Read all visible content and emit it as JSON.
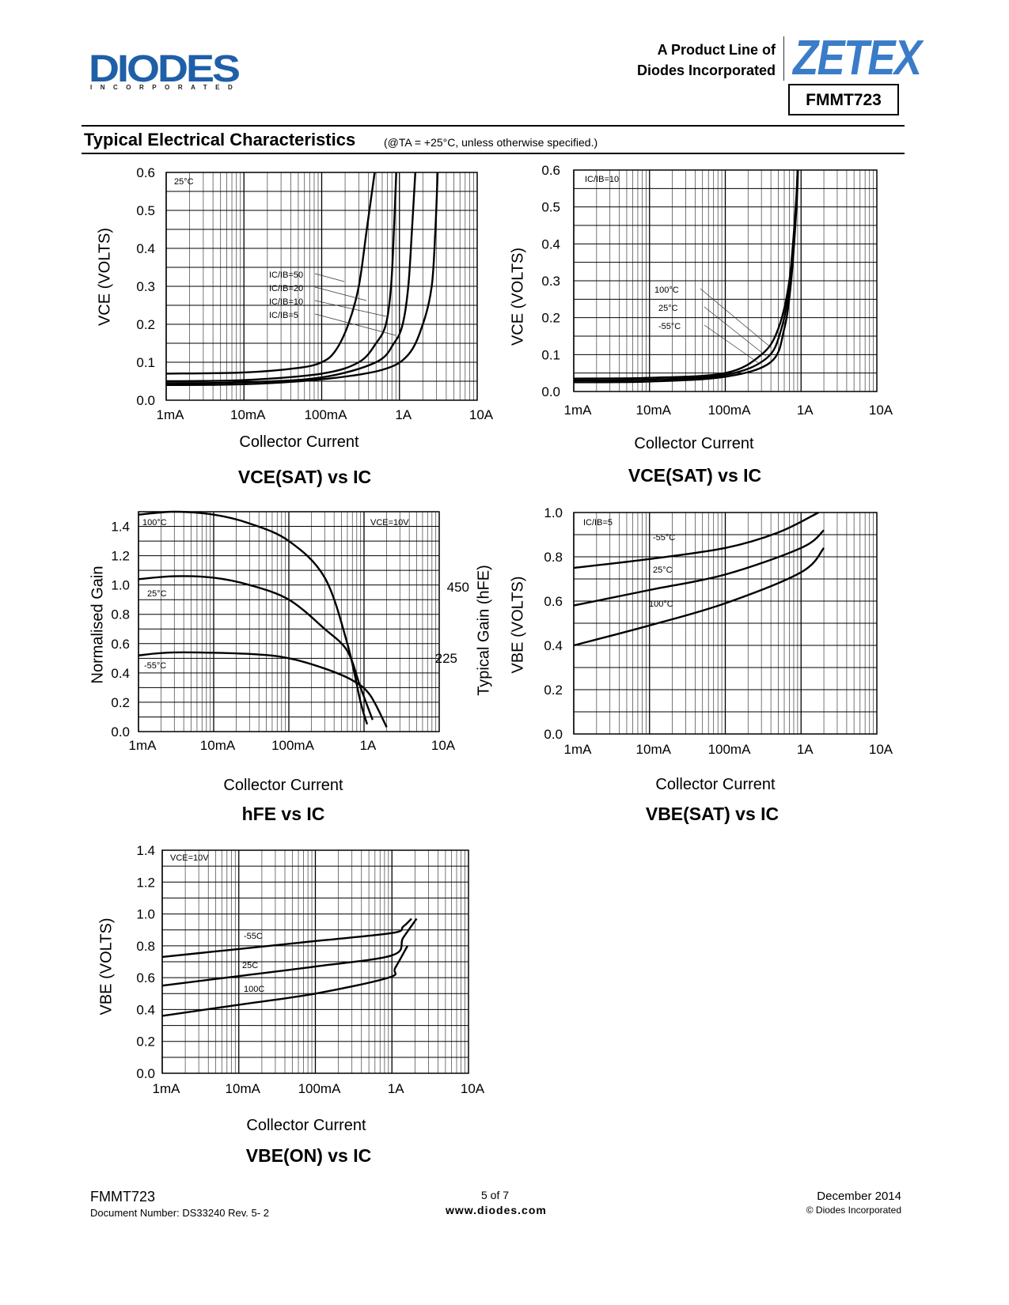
{
  "header": {
    "logo_text": "DIODES",
    "logo_sub": "INCORPORATED",
    "product_line_1": "A Product Line of",
    "product_line_2": "Diodes Incorporated",
    "zetex_logo": "ZETEX",
    "part_number": "FMMT723",
    "brand_color": "#1f5fa8"
  },
  "section": {
    "title": "Typical Electrical Characteristics",
    "note": "(@TA = +25°C, unless otherwise specified.)"
  },
  "chart_data": [
    {
      "type": "line",
      "title": "VCE(SAT) vs IC",
      "xlabel": "Collector Current",
      "ylabel": "VCE (VOLTS)",
      "xscale": "log",
      "xlim": [
        0.001,
        10
      ],
      "ylim": [
        0,
        0.6
      ],
      "xticks": [
        "1mA",
        "10mA",
        "100mA",
        "1A",
        "10A"
      ],
      "yticks": [
        "0.0",
        "0.1",
        "0.2",
        "0.3",
        "0.4",
        "0.5",
        "0.6"
      ],
      "ystep": 0.05,
      "grid": true,
      "condition": "25°C",
      "series": [
        {
          "name": "IC/IB=50",
          "points": [
            [
              0.001,
              0.07
            ],
            [
              0.01,
              0.073
            ],
            [
              0.05,
              0.085
            ],
            [
              0.1,
              0.1
            ],
            [
              0.15,
              0.13
            ],
            [
              0.22,
              0.2
            ],
            [
              0.3,
              0.3
            ],
            [
              0.38,
              0.45
            ],
            [
              0.48,
              0.6
            ]
          ]
        },
        {
          "name": "IC/IB=20",
          "points": [
            [
              0.001,
              0.05
            ],
            [
              0.01,
              0.053
            ],
            [
              0.1,
              0.07
            ],
            [
              0.3,
              0.1
            ],
            [
              0.5,
              0.15
            ],
            [
              0.67,
              0.2
            ],
            [
              0.78,
              0.3
            ],
            [
              0.85,
              0.45
            ],
            [
              0.91,
              0.6
            ]
          ]
        },
        {
          "name": "IC/IB=10",
          "points": [
            [
              0.001,
              0.045
            ],
            [
              0.01,
              0.047
            ],
            [
              0.1,
              0.06
            ],
            [
              0.5,
              0.1
            ],
            [
              0.85,
              0.15
            ],
            [
              1.1,
              0.2
            ],
            [
              1.3,
              0.3
            ],
            [
              1.45,
              0.45
            ],
            [
              1.6,
              0.6
            ]
          ]
        },
        {
          "name": "IC/IB=5",
          "points": [
            [
              0.001,
              0.04
            ],
            [
              0.01,
              0.042
            ],
            [
              0.1,
              0.055
            ],
            [
              0.6,
              0.08
            ],
            [
              1.3,
              0.12
            ],
            [
              2.0,
              0.2
            ],
            [
              2.6,
              0.3
            ],
            [
              2.9,
              0.45
            ],
            [
              3.1,
              0.6
            ]
          ]
        }
      ]
    },
    {
      "type": "line",
      "title": "VCE(SAT) vs IC",
      "xlabel": "Collector Current",
      "ylabel": "VCE (VOLTS)",
      "xscale": "log",
      "xlim": [
        0.001,
        10
      ],
      "ylim": [
        0,
        0.6
      ],
      "xticks": [
        "1mA",
        "10mA",
        "100mA",
        "1A",
        "10A"
      ],
      "yticks": [
        "0.0",
        "0.1",
        "0.2",
        "0.3",
        "0.4",
        "0.5",
        "0.6"
      ],
      "ystep": 0.05,
      "grid": true,
      "condition": "IC/IB=10",
      "series": [
        {
          "name": "100°C",
          "points": [
            [
              0.001,
              0.035
            ],
            [
              0.01,
              0.037
            ],
            [
              0.1,
              0.05
            ],
            [
              0.3,
              0.1
            ],
            [
              0.5,
              0.17
            ],
            [
              0.7,
              0.3
            ],
            [
              0.85,
              0.5
            ],
            [
              0.9,
              0.6
            ]
          ]
        },
        {
          "name": "25°C",
          "points": [
            [
              0.001,
              0.03
            ],
            [
              0.01,
              0.032
            ],
            [
              0.1,
              0.045
            ],
            [
              0.35,
              0.09
            ],
            [
              0.55,
              0.17
            ],
            [
              0.72,
              0.3
            ],
            [
              0.86,
              0.5
            ],
            [
              0.9,
              0.6
            ]
          ]
        },
        {
          "name": "-55°C",
          "points": [
            [
              0.001,
              0.025
            ],
            [
              0.01,
              0.027
            ],
            [
              0.1,
              0.04
            ],
            [
              0.4,
              0.08
            ],
            [
              0.6,
              0.17
            ],
            [
              0.74,
              0.3
            ],
            [
              0.87,
              0.5
            ],
            [
              0.91,
              0.6
            ]
          ]
        }
      ]
    },
    {
      "type": "line",
      "title": "hFE vs IC",
      "xlabel": "Collector Current",
      "ylabel": "Normalised Gain",
      "y2label": "Typical Gain (hFE)",
      "y2ticks": [
        "450",
        "225"
      ],
      "xscale": "log",
      "xlim": [
        0.001,
        10
      ],
      "ylim": [
        0,
        1.5
      ],
      "xticks": [
        "1mA",
        "10mA",
        "100mA",
        "1A",
        "10A"
      ],
      "yticks": [
        "0.0",
        "0.2",
        "0.4",
        "0.6",
        "0.8",
        "1.0",
        "1.2",
        "1.4"
      ],
      "ystep": 0.1,
      "grid": true,
      "condition": "VCE=10V",
      "series": [
        {
          "name": "100°C",
          "points": [
            [
              0.001,
              1.48
            ],
            [
              0.003,
              1.5
            ],
            [
              0.01,
              1.48
            ],
            [
              0.03,
              1.42
            ],
            [
              0.1,
              1.3
            ],
            [
              0.3,
              1.05
            ],
            [
              0.6,
              0.6
            ],
            [
              0.9,
              0.2
            ],
            [
              1.1,
              0.05
            ]
          ]
        },
        {
          "name": "25°C",
          "points": [
            [
              0.001,
              1.04
            ],
            [
              0.003,
              1.06
            ],
            [
              0.01,
              1.05
            ],
            [
              0.03,
              1.0
            ],
            [
              0.1,
              0.9
            ],
            [
              0.3,
              0.7
            ],
            [
              0.6,
              0.55
            ],
            [
              0.9,
              0.3
            ],
            [
              1.3,
              0.08
            ]
          ]
        },
        {
          "name": "-55°C",
          "points": [
            [
              0.001,
              0.52
            ],
            [
              0.003,
              0.54
            ],
            [
              0.03,
              0.53
            ],
            [
              0.1,
              0.5
            ],
            [
              0.3,
              0.43
            ],
            [
              0.7,
              0.35
            ],
            [
              1.2,
              0.25
            ],
            [
              2.0,
              0.03
            ]
          ]
        }
      ]
    },
    {
      "type": "line",
      "title": "VBE(SAT) vs IC",
      "xlabel": "Collector Current",
      "ylabel": "VBE (VOLTS)",
      "xscale": "log",
      "xlim": [
        0.001,
        10
      ],
      "ylim": [
        0,
        1.0
      ],
      "xticks": [
        "1mA",
        "10mA",
        "100mA",
        "1A",
        "10A"
      ],
      "yticks": [
        "0.0",
        "0.2",
        "0.4",
        "0.6",
        "0.8",
        "1.0"
      ],
      "ystep": 0.1,
      "grid": true,
      "condition": "IC/IB=5",
      "series": [
        {
          "name": "-55°C",
          "points": [
            [
              0.001,
              0.75
            ],
            [
              0.01,
              0.79
            ],
            [
              0.1,
              0.84
            ],
            [
              0.5,
              0.91
            ],
            [
              1.7,
              1.0
            ]
          ]
        },
        {
          "name": "25°C",
          "points": [
            [
              0.001,
              0.58
            ],
            [
              0.01,
              0.65
            ],
            [
              0.1,
              0.72
            ],
            [
              1,
              0.84
            ],
            [
              2,
              0.92
            ]
          ]
        },
        {
          "name": "100°C",
          "points": [
            [
              0.001,
              0.4
            ],
            [
              0.01,
              0.49
            ],
            [
              0.1,
              0.59
            ],
            [
              1,
              0.73
            ],
            [
              2,
              0.84
            ]
          ]
        }
      ]
    },
    {
      "type": "line",
      "title": "VBE(ON) vs IC",
      "xlabel": "Collector Current",
      "ylabel": "VBE (VOLTS)",
      "xscale": "log",
      "xlim": [
        0.001,
        10
      ],
      "ylim": [
        0,
        1.4
      ],
      "xticks": [
        "1mA",
        "10mA",
        "100mA",
        "1A",
        "10A"
      ],
      "yticks": [
        "0.0",
        "0.2",
        "0.4",
        "0.6",
        "0.8",
        "1.0",
        "1.2",
        "1.4"
      ],
      "ystep": 0.1,
      "grid": true,
      "condition": "VCE=10V",
      "series": [
        {
          "name": "-55C",
          "points": [
            [
              0.001,
              0.73
            ],
            [
              0.01,
              0.78
            ],
            [
              0.1,
              0.83
            ],
            [
              1.0,
              0.88
            ],
            [
              1.4,
              0.92
            ],
            [
              1.8,
              0.97
            ]
          ]
        },
        {
          "name": "25C",
          "points": [
            [
              0.001,
              0.55
            ],
            [
              0.01,
              0.61
            ],
            [
              0.1,
              0.67
            ],
            [
              1.0,
              0.74
            ],
            [
              1.4,
              0.85
            ],
            [
              2.1,
              0.97
            ]
          ]
        },
        {
          "name": "100C",
          "points": [
            [
              0.001,
              0.36
            ],
            [
              0.01,
              0.43
            ],
            [
              0.1,
              0.5
            ],
            [
              0.9,
              0.6
            ],
            [
              1.1,
              0.66
            ],
            [
              1.6,
              0.8
            ]
          ]
        }
      ]
    }
  ],
  "footer": {
    "part": "FMMT723",
    "doc_number": "Document Number: DS33240 Rev. 5- 2",
    "page": "5 of 7",
    "website": "www.diodes.com",
    "date": "December 2014",
    "copyright": "© Diodes Incorporated"
  }
}
